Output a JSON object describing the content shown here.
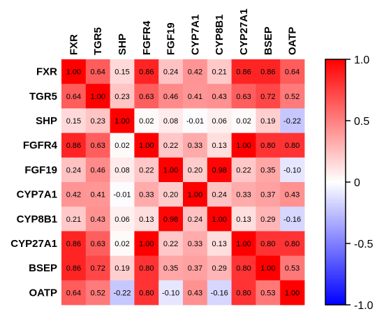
{
  "chart_data": {
    "type": "heatmap",
    "labels": [
      "FXR",
      "TGR5",
      "SHP",
      "FGFR4",
      "FGF19",
      "CYP7A1",
      "CYP8B1",
      "CYP27A1",
      "BSEP",
      "OATP"
    ],
    "matrix": [
      [
        1.0,
        0.64,
        0.15,
        0.86,
        0.24,
        0.42,
        0.21,
        0.86,
        0.86,
        0.64
      ],
      [
        0.64,
        1.0,
        0.23,
        0.63,
        0.46,
        0.41,
        0.43,
        0.63,
        0.72,
        0.52
      ],
      [
        0.15,
        0.23,
        1.0,
        0.02,
        0.08,
        -0.01,
        0.06,
        0.02,
        0.19,
        -0.22
      ],
      [
        0.86,
        0.63,
        0.02,
        1.0,
        0.22,
        0.33,
        0.13,
        1.0,
        0.8,
        0.8
      ],
      [
        0.24,
        0.46,
        0.08,
        0.22,
        1.0,
        0.2,
        0.98,
        0.22,
        0.35,
        -0.1
      ],
      [
        0.42,
        0.41,
        -0.01,
        0.33,
        0.2,
        1.0,
        0.24,
        0.33,
        0.37,
        0.43
      ],
      [
        0.21,
        0.43,
        0.06,
        0.13,
        0.98,
        0.24,
        1.0,
        0.13,
        0.29,
        -0.16
      ],
      [
        0.86,
        0.63,
        0.02,
        1.0,
        0.22,
        0.33,
        0.13,
        1.0,
        0.8,
        0.8
      ],
      [
        0.86,
        0.72,
        0.19,
        0.8,
        0.35,
        0.37,
        0.29,
        0.8,
        1.0,
        0.53
      ],
      [
        0.64,
        0.52,
        -0.22,
        0.8,
        -0.1,
        0.43,
        -0.16,
        0.8,
        0.53,
        1.0
      ]
    ],
    "cell_labels": [
      [
        "1.00",
        "0.64",
        "0.15",
        "0.86",
        "0.24",
        "0.42",
        "0.21",
        "0.86",
        "0.86",
        "0.64"
      ],
      [
        "0.64",
        "1.00",
        "0.23",
        "0.63",
        "0.46",
        "0.41",
        "0.43",
        "0.63",
        "0.72",
        "0.52"
      ],
      [
        "0.15",
        "0.23",
        "1.00",
        "0.02",
        "0.08",
        "-0.01",
        "0.06",
        "0.02",
        "0.19",
        "-0.22"
      ],
      [
        "0.86",
        "0.63",
        "0.02",
        "1.00",
        "0.22",
        "0.33",
        "0.13",
        "1.00",
        "0.80",
        "0.80"
      ],
      [
        "0.24",
        "0.46",
        "0.08",
        "0.22",
        "1.00",
        "0.20",
        "0.98",
        "0.22",
        "0.35",
        "-0.10"
      ],
      [
        "0.42",
        "0.41",
        "-0.01",
        "0.33",
        "0.20",
        "1.00",
        "0.24",
        "0.33",
        "0.37",
        "0.43"
      ],
      [
        "0.21",
        "0.43",
        "0.06",
        "0.13",
        "0.98",
        "0.24",
        "1.00",
        "0.13",
        "0.29",
        "-0.16"
      ],
      [
        "0.86",
        "0.63",
        "0.02",
        "1.00",
        "0.22",
        "0.33",
        "0.13",
        "1.00",
        "0.80",
        "0.80"
      ],
      [
        "0.86",
        "0.72",
        "0.19",
        "0.80",
        "0.35",
        "0.37",
        "0.29",
        "0.80",
        "1.00",
        "0.53"
      ],
      [
        "0.64",
        "0.52",
        "-0.22",
        "0.80",
        "-0.10",
        "0.43",
        "-0.16",
        "0.80",
        "0.53",
        "1.00"
      ]
    ],
    "colorbar": {
      "range": [
        -1.0,
        1.0
      ],
      "ticks": [
        1.0,
        0.5,
        0,
        -0.5,
        -1.0
      ],
      "tick_labels": [
        "1.0",
        "0.5",
        "0",
        "-0.5",
        "-1.0"
      ],
      "colors": {
        "low": "#0000ff",
        "mid": "#ffffff",
        "high": "#ff0000"
      }
    },
    "legend_position": "right",
    "grid": false
  }
}
